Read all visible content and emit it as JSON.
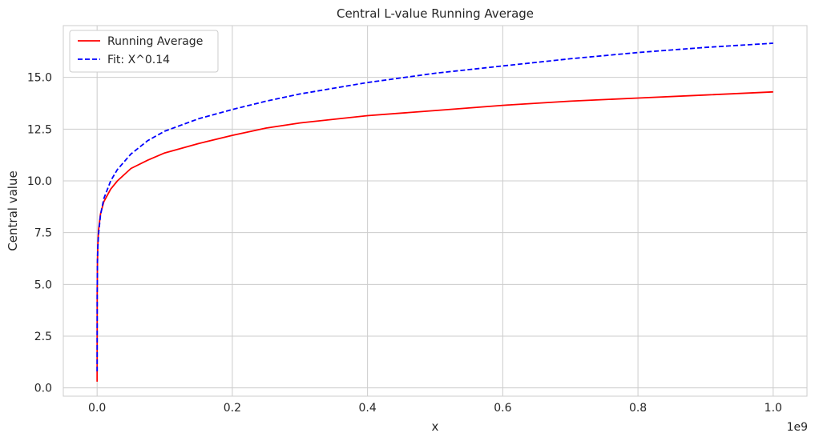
{
  "chart_data": {
    "type": "line",
    "title": "Central L-value Running Average",
    "xlabel": "x",
    "ylabel": "Central value",
    "x_offset_label": "1e9",
    "xlim": [
      -0.05,
      1.05
    ],
    "ylim": [
      -0.4,
      17.5
    ],
    "xticks": [
      0.0,
      0.2,
      0.4,
      0.6,
      0.8,
      1.0
    ],
    "xtick_labels": [
      "0.0",
      "0.2",
      "0.4",
      "0.6",
      "0.8",
      "1.0"
    ],
    "yticks": [
      0.0,
      2.5,
      5.0,
      7.5,
      10.0,
      12.5,
      15.0
    ],
    "ytick_labels": [
      "0.0",
      "2.5",
      "5.0",
      "7.5",
      "10.0",
      "12.5",
      "15.0"
    ],
    "grid": true,
    "legend_position": "top-left",
    "series": [
      {
        "name": "Running Average",
        "color": "#ff0000",
        "style": "solid",
        "x": [
          0.0,
          0.0001,
          0.0005,
          0.001,
          0.002,
          0.005,
          0.01,
          0.02,
          0.03,
          0.05,
          0.075,
          0.1,
          0.15,
          0.2,
          0.25,
          0.3,
          0.4,
          0.5,
          0.6,
          0.7,
          0.8,
          0.9,
          1.0
        ],
        "y": [
          0.3,
          4.5,
          6.0,
          6.8,
          7.6,
          8.4,
          9.0,
          9.6,
          10.0,
          10.6,
          11.0,
          11.35,
          11.8,
          12.2,
          12.55,
          12.8,
          13.15,
          13.4,
          13.65,
          13.85,
          14.0,
          14.15,
          14.3
        ]
      },
      {
        "name": "Fit: X^0.14",
        "color": "#0000ff",
        "style": "dashed",
        "x": [
          0.0,
          0.0001,
          0.0005,
          0.001,
          0.002,
          0.005,
          0.01,
          0.02,
          0.03,
          0.05,
          0.075,
          0.1,
          0.15,
          0.2,
          0.25,
          0.3,
          0.4,
          0.5,
          0.6,
          0.7,
          0.8,
          0.9,
          1.0
        ],
        "y": [
          0.8,
          4.6,
          6.1,
          6.75,
          7.4,
          8.35,
          9.15,
          10.0,
          10.55,
          11.3,
          11.95,
          12.4,
          13.0,
          13.45,
          13.85,
          14.2,
          14.75,
          15.2,
          15.55,
          15.9,
          16.2,
          16.45,
          16.65
        ]
      }
    ]
  }
}
